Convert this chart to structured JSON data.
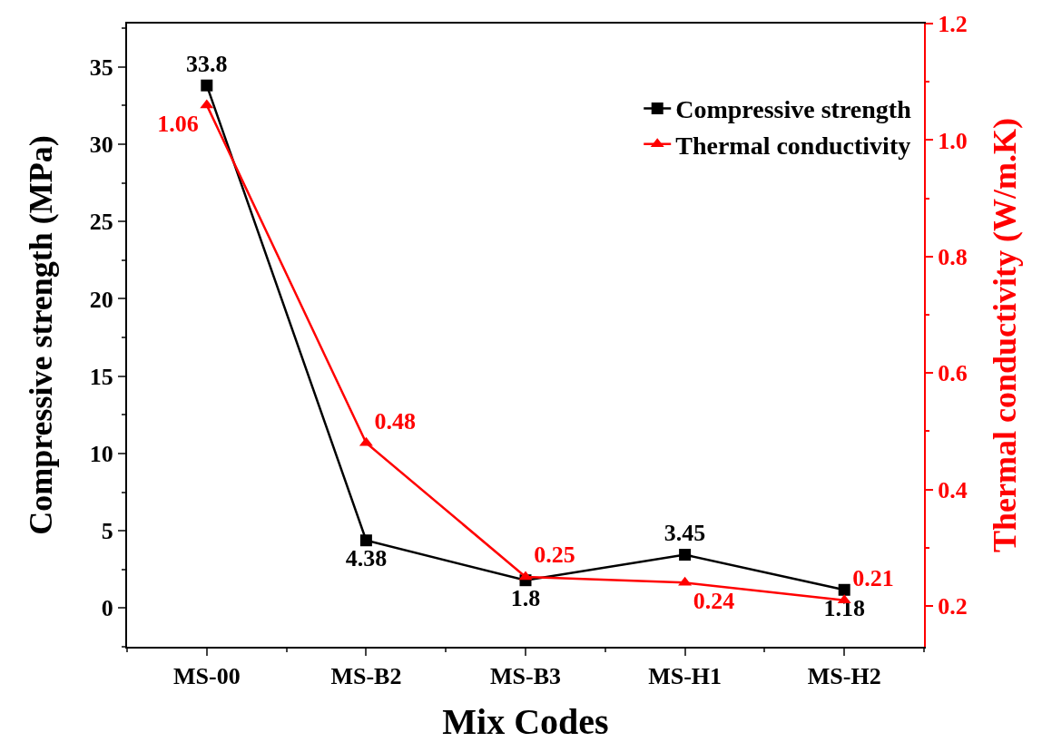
{
  "chart_data": {
    "type": "line",
    "xlabel": "Mix Codes",
    "ylabel": "Compressive strength (MPa)",
    "y2label": "Thermal conductivity (W/m.K)",
    "categories": [
      "MS-00",
      "MS-B2",
      "MS-B3",
      "MS-H1",
      "MS-H2"
    ],
    "series": [
      {
        "name": "Compressive strength",
        "color": "#000000",
        "marker": "square",
        "values": [
          33.8,
          4.38,
          1.8,
          3.45,
          1.18
        ]
      },
      {
        "name": "Thermal conductivity",
        "color": "#ff0000",
        "marker": "triangle",
        "axis": "y2",
        "values": [
          1.06,
          0.48,
          0.25,
          0.24,
          0.21
        ]
      }
    ],
    "ylim": [
      -2.5,
      37.8
    ],
    "yticks": [
      0,
      5,
      10,
      15,
      20,
      25,
      30,
      35
    ],
    "y2lim": [
      0.13,
      1.2
    ],
    "y2ticks": [
      {
        "value": 0.2,
        "label": "0.2"
      },
      {
        "value": 0.4,
        "label": "0.4"
      },
      {
        "value": 0.6,
        "label": "0.6"
      },
      {
        "value": 0.8,
        "label": "0.8"
      },
      {
        "value": 1.0,
        "label": "1.0"
      },
      {
        "value": 1.2,
        "label": "1.2"
      }
    ],
    "data_labels": true,
    "legend": "top right",
    "grid": false,
    "line_style": "solid"
  }
}
